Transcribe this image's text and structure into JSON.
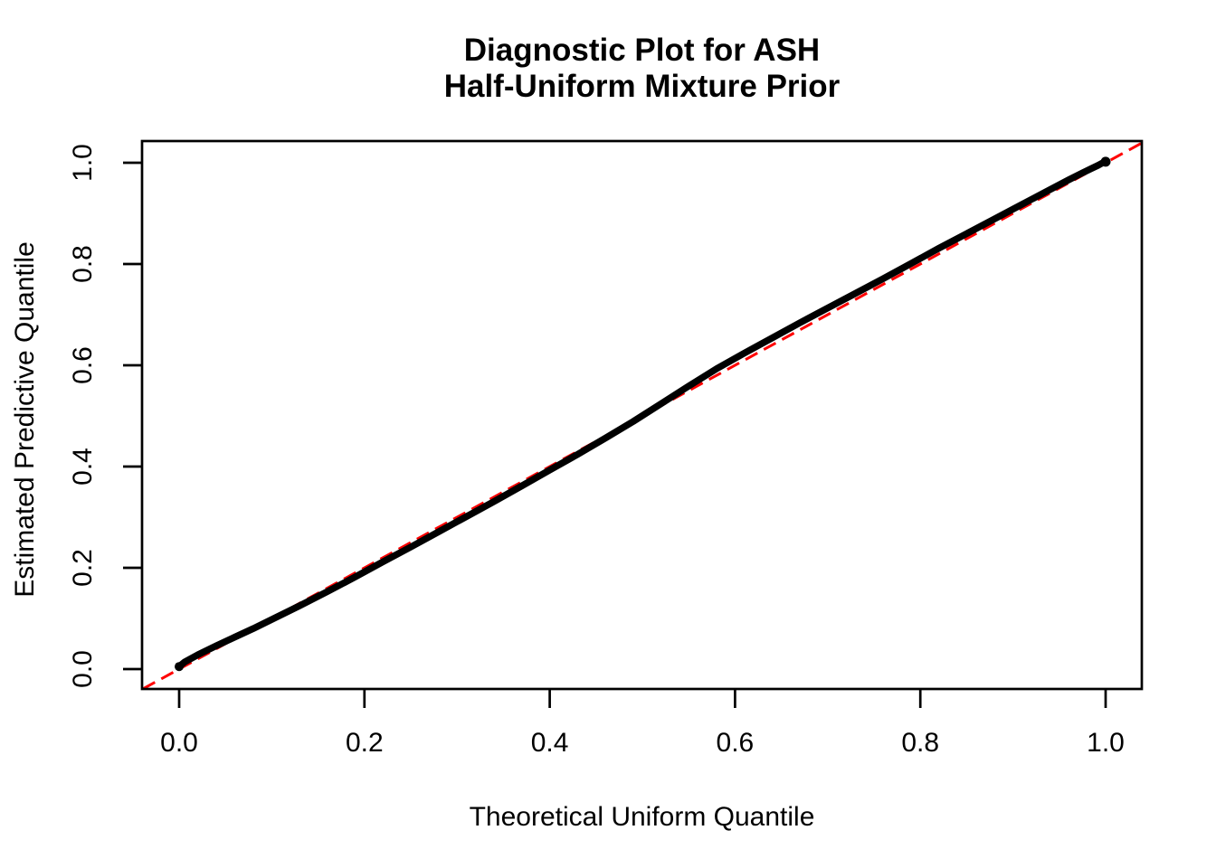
{
  "chart": {
    "title_line1": "Diagnostic Plot for ASH",
    "title_line2": "Half-Uniform Mixture Prior",
    "xlabel": "Theoretical Uniform Quantile",
    "ylabel": "Estimated Predictive Quantile"
  },
  "chart_data": {
    "type": "scatter",
    "title": "Diagnostic Plot for ASH Half-Uniform Mixture Prior",
    "xlabel": "Theoretical Uniform Quantile",
    "ylabel": "Estimated Predictive Quantile",
    "xlim": [
      -0.04,
      1.04
    ],
    "ylim": [
      -0.04,
      1.04
    ],
    "grid": false,
    "legend": null,
    "x_ticks": {
      "values": [
        0,
        0.2,
        0.4,
        0.6,
        0.8,
        1.0
      ],
      "labels": [
        "0.0",
        "0.2",
        "0.4",
        "0.6",
        "0.8",
        "1.0"
      ]
    },
    "y_ticks": {
      "values": [
        0,
        0.2,
        0.4,
        0.6,
        0.8,
        1.0
      ],
      "labels": [
        "0.0",
        "0.2",
        "0.4",
        "0.6",
        "0.8",
        "1.0"
      ]
    },
    "colors": {
      "curve": "#000000",
      "reference_line": "#FF0000",
      "axis": "#000000",
      "background": "#FFFFFF"
    },
    "series": [
      {
        "name": "estimated-predictive-quantiles",
        "style": "dense-point-curve",
        "color": "#000000",
        "points": [
          [
            0.0,
            0.005
          ],
          [
            0.006,
            0.014
          ],
          [
            0.02,
            0.028
          ],
          [
            0.04,
            0.046
          ],
          [
            0.06,
            0.063
          ],
          [
            0.08,
            0.08
          ],
          [
            0.1,
            0.098
          ],
          [
            0.13,
            0.125
          ],
          [
            0.16,
            0.153
          ],
          [
            0.19,
            0.182
          ],
          [
            0.22,
            0.212
          ],
          [
            0.25,
            0.241
          ],
          [
            0.28,
            0.271
          ],
          [
            0.31,
            0.301
          ],
          [
            0.34,
            0.331
          ],
          [
            0.37,
            0.362
          ],
          [
            0.4,
            0.393
          ],
          [
            0.43,
            0.424
          ],
          [
            0.46,
            0.456
          ],
          [
            0.49,
            0.489
          ],
          [
            0.52,
            0.524
          ],
          [
            0.55,
            0.559
          ],
          [
            0.58,
            0.593
          ],
          [
            0.61,
            0.624
          ],
          [
            0.64,
            0.654
          ],
          [
            0.67,
            0.684
          ],
          [
            0.7,
            0.713
          ],
          [
            0.73,
            0.742
          ],
          [
            0.76,
            0.771
          ],
          [
            0.79,
            0.801
          ],
          [
            0.82,
            0.831
          ],
          [
            0.85,
            0.86
          ],
          [
            0.88,
            0.889
          ],
          [
            0.91,
            0.918
          ],
          [
            0.94,
            0.947
          ],
          [
            0.96,
            0.966
          ],
          [
            0.975,
            0.98
          ],
          [
            0.985,
            0.989
          ],
          [
            0.992,
            0.995
          ],
          [
            0.997,
            1.0
          ],
          [
            1.0,
            1.002
          ]
        ]
      },
      {
        "name": "diagonal-reference-y-equals-x",
        "style": "dashed-line",
        "color": "#FF0000",
        "points": [
          [
            -0.039,
            -0.039
          ],
          [
            1.039,
            1.039
          ]
        ]
      }
    ]
  }
}
